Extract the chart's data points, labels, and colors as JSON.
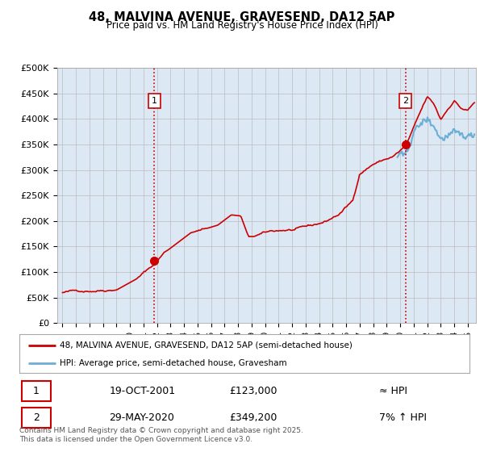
{
  "title": "48, MALVINA AVENUE, GRAVESEND, DA12 5AP",
  "subtitle": "Price paid vs. HM Land Registry's House Price Index (HPI)",
  "ylabel_ticks": [
    "£0",
    "£50K",
    "£100K",
    "£150K",
    "£200K",
    "£250K",
    "£300K",
    "£350K",
    "£400K",
    "£450K",
    "£500K"
  ],
  "ytick_values": [
    0,
    50000,
    100000,
    150000,
    200000,
    250000,
    300000,
    350000,
    400000,
    450000,
    500000
  ],
  "ylim": [
    0,
    500000
  ],
  "xlim_start": 1994.6,
  "xlim_end": 2025.6,
  "line1_color": "#cc0000",
  "line2_color": "#6baed6",
  "chart_bg": "#dce9f5",
  "vline_color": "#cc0000",
  "marker1_year": 2001.8,
  "marker1_price": 123000,
  "marker2_year": 2020.4,
  "marker2_price": 349200,
  "hpi_start_year": 2020.0,
  "legend_line1": "48, MALVINA AVENUE, GRAVESEND, DA12 5AP (semi-detached house)",
  "legend_line2": "HPI: Average price, semi-detached house, Gravesham",
  "annotation1_date": "19-OCT-2001",
  "annotation1_price": "£123,000",
  "annotation1_hpi": "≈ HPI",
  "annotation2_date": "29-MAY-2020",
  "annotation2_price": "£349,200",
  "annotation2_hpi": "7% ↑ HPI",
  "footer": "Contains HM Land Registry data © Crown copyright and database right 2025.\nThis data is licensed under the Open Government Licence v3.0.",
  "bg_color": "#ffffff",
  "grid_color": "#bbbbbb"
}
